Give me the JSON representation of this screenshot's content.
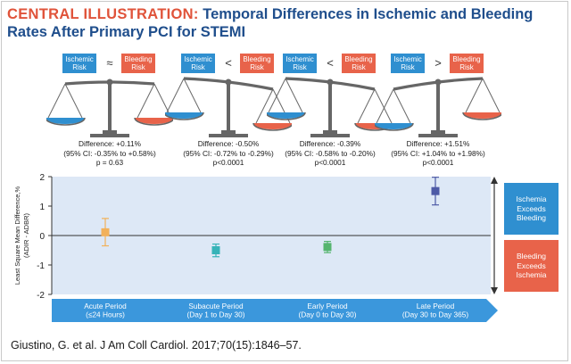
{
  "title": {
    "lead": "CENTRAL ILLUSTRATION:",
    "line1_rest": " Temporal Differences in Ischemic and Bleeding",
    "line2": "Rates After Primary PCI for STEMI"
  },
  "labels": {
    "ischemic": [
      "Ischemic",
      "Risk"
    ],
    "bleeding": [
      "Bleeding",
      "Risk"
    ]
  },
  "panels": [
    {
      "symbol": "≈",
      "tilt": "level",
      "difference": "Difference: +0.11%",
      "ci": "(95% CI: -0.35% to +0.58%)",
      "p": "p = 0.63"
    },
    {
      "symbol": "<",
      "tilt": "right-down",
      "difference": "Difference: -0.50%",
      "ci": "(95% CI: -0.72% to -0.29%)",
      "p": "p<0.0001"
    },
    {
      "symbol": "<",
      "tilt": "right-down",
      "difference": "Difference: -0.39%",
      "ci": "(95% CI: -0.58% to -0.20%)",
      "p": "p<0.0001"
    },
    {
      "symbol": ">",
      "tilt": "left-down",
      "difference": "Difference: +1.51%",
      "ci": "(95% CI: +1.04% to +1.98%)",
      "p": "p<0.0001"
    }
  ],
  "colors": {
    "ischemic": "#2f8fd0",
    "bleeding": "#e8634a",
    "title_blue": "#1f4e8c",
    "plot_bg": "#dde8f6",
    "arrow": "#3b97dc",
    "scale_gray": "#666666"
  },
  "chart_data": {
    "type": "scatter",
    "ylabel_lines": [
      "Least Square Mean Difference,%",
      "(ADIR - ADBR)"
    ],
    "ylim": [
      -2,
      2
    ],
    "yticks": [
      "2",
      "1",
      "0",
      "-1",
      "-2"
    ],
    "grid": false,
    "categories": [
      [
        "Acute Period",
        "(≤24 Hours)"
      ],
      [
        "Subacute Period",
        "(Day 1 to Day 30)"
      ],
      [
        "Early Period",
        "(Day 0 to Day 30)"
      ],
      [
        "Late Period",
        "(Day 30 to Day 365)"
      ]
    ],
    "points": [
      {
        "value": 0.11,
        "lower": -0.35,
        "upper": 0.58,
        "color": "#f2b15a"
      },
      {
        "value": -0.5,
        "lower": -0.72,
        "upper": -0.29,
        "color": "#36b3b8"
      },
      {
        "value": -0.39,
        "lower": -0.58,
        "upper": -0.2,
        "color": "#55b56e"
      },
      {
        "value": 1.51,
        "lower": 1.04,
        "upper": 1.98,
        "color": "#4d5aa6"
      }
    ],
    "annotations": {
      "above": [
        "Ischemia",
        "Exceeds",
        "Bleeding"
      ],
      "below": [
        "Bleeding",
        "Exceeds",
        "Ischemia"
      ]
    }
  },
  "citation": "Giustino, G. et al. J Am Coll Cardiol. 2017;70(15):1846–57."
}
